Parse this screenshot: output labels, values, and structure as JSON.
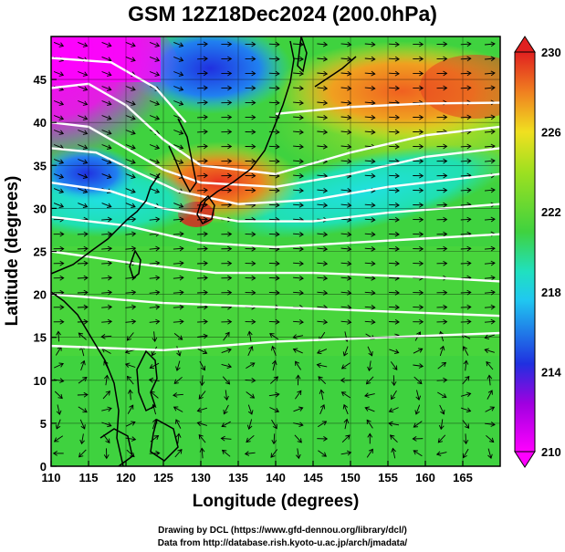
{
  "title": "GSM 12Z18Dec2024 (200.0hPa)",
  "colors": {
    "magenta": "#ff00ff",
    "blue": "#2030e0",
    "cyan": "#20e0e0",
    "green": "#3fd23f",
    "yellow": "#f0e020",
    "orange": "#f08020",
    "red": "#e02020",
    "contour": "#ffffff",
    "streamline": "#000000"
  },
  "chart_data": {
    "type": "heatmap",
    "x_range": [
      110,
      170
    ],
    "y_range": [
      0,
      50
    ],
    "xlabel": "Longitude (degrees)",
    "ylabel": "Latitude  (degrees)",
    "x_ticks": [
      "110",
      "115",
      "120",
      "125",
      "130",
      "135",
      "140",
      "145",
      "150",
      "155",
      "160",
      "165"
    ],
    "y_ticks": [
      "0",
      "5",
      "10",
      "15",
      "20",
      "25",
      "30",
      "35",
      "40",
      "45"
    ],
    "colorbar": {
      "min": 210,
      "max": 230,
      "labels": [
        "210",
        "214",
        "218",
        "222",
        "226",
        "230"
      ]
    },
    "grid": true,
    "overlays": [
      "streamlines",
      "white contour lines"
    ]
  },
  "credits": {
    "line1": "Drawing by DCL (https://www.gfd-dennou.org/library/dcl/)",
    "line2": "Data from http://database.rish.kyoto-u.ac.jp/arch/jmadata/"
  }
}
